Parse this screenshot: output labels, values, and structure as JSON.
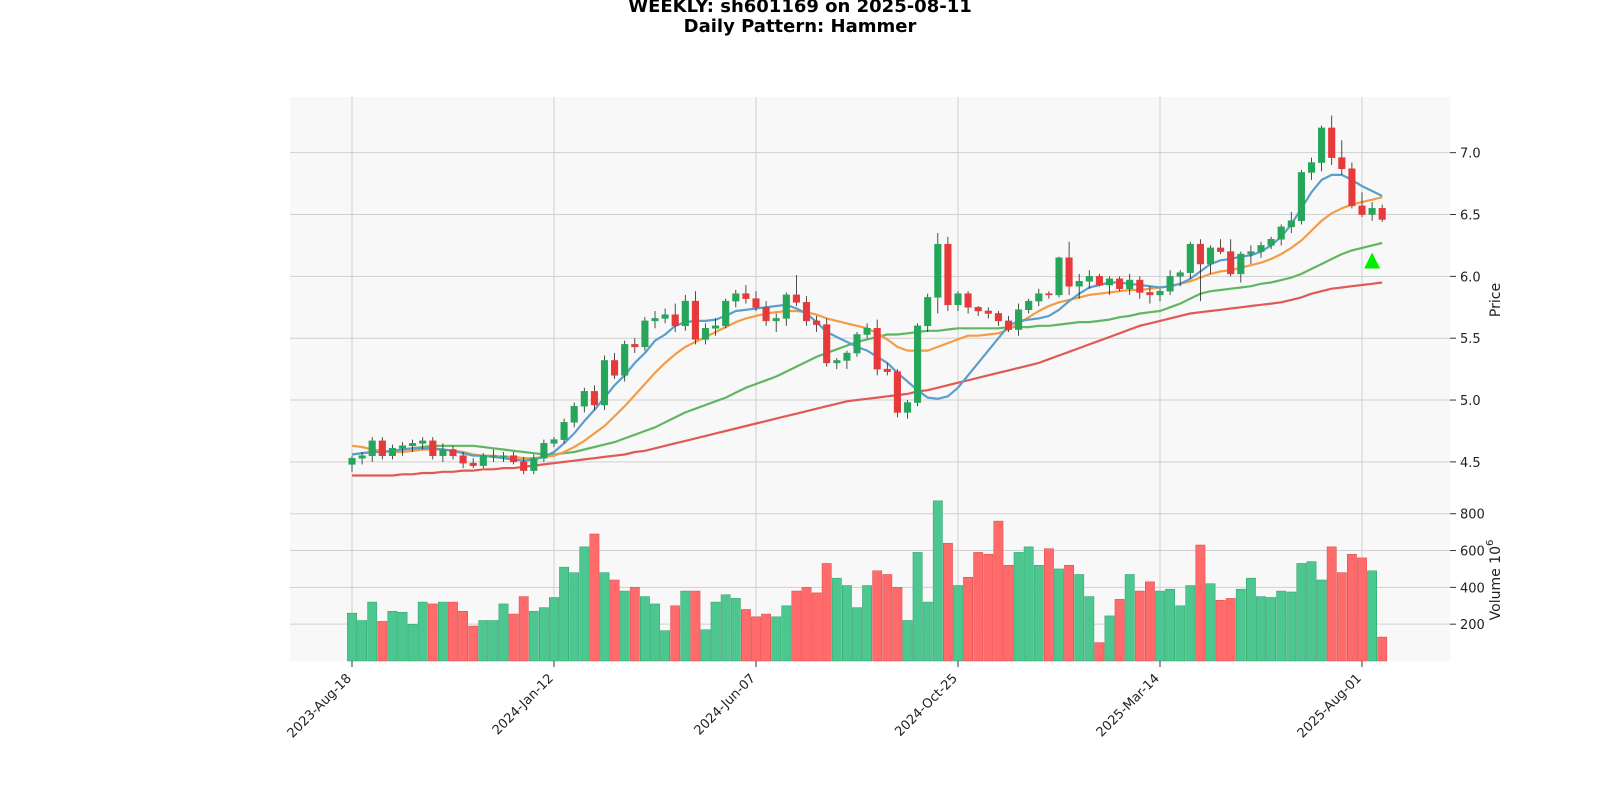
{
  "chart_data": {
    "type": "candlestick",
    "title": "WEEKLY: sh601169 on 2025-08-11",
    "subtitle": "Daily Pattern: Hammer",
    "ylabel_price": "Price",
    "ylabel_volume": "Volume",
    "volume_unit_exponent": "6",
    "x_tick_labels": [
      "2023-Aug-18",
      "2024-Jan-12",
      "2024-Jun-07",
      "2024-Oct-25",
      "2025-Mar-14",
      "2025-Aug-01"
    ],
    "x_tick_indices": [
      0,
      20,
      40,
      60,
      80,
      100
    ],
    "price_ylim": [
      4.2,
      7.45
    ],
    "price_ticks": [
      "4.5",
      "5.0",
      "5.5",
      "6.0",
      "6.5",
      "7.0"
    ],
    "volume_ylim": [
      0,
      880
    ],
    "volume_ticks": [
      "200",
      "400",
      "600",
      "800"
    ],
    "grid": true,
    "colors": {
      "up": "#26a65b",
      "down": "#e8393a",
      "volume_up": "#4dc790",
      "volume_down": "#ff6b6b",
      "ma_fast": "#5a9ec9",
      "ma_mid": "#f39c45",
      "ma_slow": "#5fb764",
      "ma_long": "#e05a55",
      "marker": "#00ee00",
      "panel_bg": "#f8f8f8"
    },
    "candles": [
      [
        4.48,
        4.55,
        4.42,
        4.53
      ],
      [
        4.53,
        4.58,
        4.48,
        4.55
      ],
      [
        4.55,
        4.7,
        4.5,
        4.67
      ],
      [
        4.67,
        4.7,
        4.52,
        4.55
      ],
      [
        4.55,
        4.64,
        4.52,
        4.61
      ],
      [
        4.61,
        4.66,
        4.55,
        4.63
      ],
      [
        4.63,
        4.68,
        4.58,
        4.65
      ],
      [
        4.65,
        4.7,
        4.6,
        4.67
      ],
      [
        4.67,
        4.7,
        4.52,
        4.55
      ],
      [
        4.55,
        4.65,
        4.5,
        4.6
      ],
      [
        4.6,
        4.63,
        4.52,
        4.55
      ],
      [
        4.55,
        4.58,
        4.45,
        4.49
      ],
      [
        4.49,
        4.53,
        4.45,
        4.47
      ],
      [
        4.47,
        4.57,
        4.45,
        4.55
      ],
      [
        4.55,
        4.6,
        4.5,
        4.55
      ],
      [
        4.55,
        4.58,
        4.5,
        4.55
      ],
      [
        4.55,
        4.58,
        4.48,
        4.5
      ],
      [
        4.5,
        4.54,
        4.4,
        4.43
      ],
      [
        4.43,
        4.56,
        4.4,
        4.53
      ],
      [
        4.53,
        4.68,
        4.5,
        4.65
      ],
      [
        4.65,
        4.7,
        4.62,
        4.68
      ],
      [
        4.68,
        4.85,
        4.65,
        4.82
      ],
      [
        4.82,
        4.98,
        4.78,
        4.95
      ],
      [
        4.95,
        5.1,
        4.9,
        5.07
      ],
      [
        5.07,
        5.12,
        4.92,
        4.96
      ],
      [
        4.96,
        5.36,
        4.92,
        5.32
      ],
      [
        5.32,
        5.38,
        5.17,
        5.2
      ],
      [
        5.2,
        5.48,
        5.15,
        5.45
      ],
      [
        5.45,
        5.5,
        5.38,
        5.43
      ],
      [
        5.43,
        5.67,
        5.4,
        5.64
      ],
      [
        5.64,
        5.72,
        5.58,
        5.66
      ],
      [
        5.66,
        5.74,
        5.62,
        5.69
      ],
      [
        5.69,
        5.78,
        5.55,
        5.6
      ],
      [
        5.6,
        5.85,
        5.56,
        5.8
      ],
      [
        5.8,
        5.88,
        5.45,
        5.49
      ],
      [
        5.49,
        5.62,
        5.45,
        5.58
      ],
      [
        5.58,
        5.66,
        5.52,
        5.6
      ],
      [
        5.6,
        5.82,
        5.58,
        5.8
      ],
      [
        5.8,
        5.89,
        5.75,
        5.86
      ],
      [
        5.86,
        5.93,
        5.78,
        5.82
      ],
      [
        5.82,
        5.88,
        5.72,
        5.75
      ],
      [
        5.75,
        5.8,
        5.6,
        5.64
      ],
      [
        5.64,
        5.7,
        5.55,
        5.66
      ],
      [
        5.66,
        5.87,
        5.6,
        5.85
      ],
      [
        5.85,
        6.01,
        5.76,
        5.79
      ],
      [
        5.79,
        5.84,
        5.6,
        5.64
      ],
      [
        5.64,
        5.68,
        5.55,
        5.61
      ],
      [
        5.61,
        5.66,
        5.27,
        5.3
      ],
      [
        5.3,
        5.34,
        5.25,
        5.32
      ],
      [
        5.32,
        5.4,
        5.25,
        5.38
      ],
      [
        5.38,
        5.55,
        5.35,
        5.53
      ],
      [
        5.53,
        5.62,
        5.5,
        5.58
      ],
      [
        5.58,
        5.65,
        5.2,
        5.25
      ],
      [
        5.25,
        5.3,
        5.2,
        5.23
      ],
      [
        5.23,
        5.25,
        4.86,
        4.9
      ],
      [
        4.9,
        5.0,
        4.85,
        4.98
      ],
      [
        4.98,
        5.62,
        4.95,
        5.6
      ],
      [
        5.6,
        5.86,
        5.55,
        5.83
      ],
      [
        5.83,
        6.35,
        5.7,
        6.26
      ],
      [
        6.26,
        6.32,
        5.72,
        5.77
      ],
      [
        5.77,
        5.88,
        5.72,
        5.86
      ],
      [
        5.86,
        5.88,
        5.7,
        5.75
      ],
      [
        5.75,
        5.76,
        5.68,
        5.72
      ],
      [
        5.72,
        5.75,
        5.66,
        5.7
      ],
      [
        5.7,
        5.72,
        5.6,
        5.64
      ],
      [
        5.64,
        5.68,
        5.55,
        5.57
      ],
      [
        5.57,
        5.78,
        5.52,
        5.73
      ],
      [
        5.73,
        5.82,
        5.7,
        5.8
      ],
      [
        5.8,
        5.9,
        5.76,
        5.86
      ],
      [
        5.86,
        5.88,
        5.82,
        5.85
      ],
      [
        5.85,
        6.16,
        5.83,
        6.15
      ],
      [
        6.15,
        6.28,
        5.85,
        5.92
      ],
      [
        5.92,
        6.02,
        5.82,
        5.96
      ],
      [
        5.96,
        6.05,
        5.9,
        6.0
      ],
      [
        6.0,
        6.02,
        5.92,
        5.93
      ],
      [
        5.93,
        6.0,
        5.85,
        5.98
      ],
      [
        5.98,
        6.0,
        5.88,
        5.9
      ],
      [
        5.9,
        6.02,
        5.85,
        5.97
      ],
      [
        5.97,
        6.0,
        5.82,
        5.87
      ],
      [
        5.87,
        5.92,
        5.78,
        5.85
      ],
      [
        5.85,
        5.9,
        5.8,
        5.88
      ],
      [
        5.88,
        6.05,
        5.85,
        6.0
      ],
      [
        6.0,
        6.05,
        5.92,
        6.03
      ],
      [
        6.03,
        6.28,
        5.98,
        6.26
      ],
      [
        6.26,
        6.3,
        5.8,
        6.1
      ],
      [
        6.1,
        6.25,
        6.02,
        6.23
      ],
      [
        6.23,
        6.3,
        6.18,
        6.2
      ],
      [
        6.2,
        6.3,
        6.0,
        6.02
      ],
      [
        6.02,
        6.2,
        5.95,
        6.18
      ],
      [
        6.18,
        6.25,
        6.1,
        6.2
      ],
      [
        6.2,
        6.28,
        6.15,
        6.25
      ],
      [
        6.25,
        6.32,
        6.22,
        6.3
      ],
      [
        6.3,
        6.42,
        6.25,
        6.4
      ],
      [
        6.4,
        6.52,
        6.35,
        6.45
      ],
      [
        6.45,
        6.86,
        6.42,
        6.84
      ],
      [
        6.84,
        6.96,
        6.78,
        6.92
      ],
      [
        6.92,
        7.22,
        6.85,
        7.2
      ],
      [
        7.2,
        7.3,
        6.9,
        6.96
      ],
      [
        6.96,
        7.1,
        6.82,
        6.87
      ],
      [
        6.87,
        6.92,
        6.55,
        6.57
      ],
      [
        6.57,
        6.68,
        6.48,
        6.5
      ],
      [
        6.5,
        6.6,
        6.45,
        6.55
      ],
      [
        6.55,
        6.58,
        6.44,
        6.46
      ]
    ],
    "volumes": [
      260,
      220,
      320,
      215,
      270,
      265,
      200,
      320,
      310,
      320,
      320,
      270,
      190,
      220,
      220,
      310,
      255,
      350,
      270,
      290,
      345,
      510,
      480,
      620,
      690,
      480,
      440,
      380,
      400,
      350,
      310,
      165,
      300,
      380,
      380,
      170,
      320,
      360,
      340,
      280,
      240,
      255,
      240,
      300,
      380,
      400,
      370,
      530,
      450,
      410,
      290,
      410,
      490,
      470,
      400,
      220,
      590,
      320,
      870,
      640,
      410,
      455,
      590,
      580,
      760,
      520,
      590,
      620,
      520,
      610,
      500,
      520,
      470,
      350,
      100,
      245,
      335,
      470,
      380,
      430,
      380,
      390,
      300,
      410,
      630,
      420,
      330,
      340,
      390,
      450,
      350,
      345,
      380,
      375,
      530,
      540,
      440,
      620,
      480,
      580,
      560,
      490,
      130
    ],
    "ma_fast": [
      4.56,
      4.57,
      4.58,
      4.58,
      4.59,
      4.6,
      4.61,
      4.61,
      4.61,
      4.6,
      4.59,
      4.57,
      4.55,
      4.55,
      4.54,
      4.53,
      4.52,
      4.51,
      4.52,
      4.54,
      4.58,
      4.65,
      4.73,
      4.83,
      4.92,
      5.02,
      5.12,
      5.2,
      5.3,
      5.38,
      5.48,
      5.53,
      5.6,
      5.63,
      5.64,
      5.64,
      5.65,
      5.68,
      5.72,
      5.73,
      5.74,
      5.75,
      5.76,
      5.77,
      5.74,
      5.7,
      5.63,
      5.55,
      5.51,
      5.47,
      5.43,
      5.4,
      5.35,
      5.3,
      5.22,
      5.15,
      5.08,
      5.02,
      5.01,
      5.03,
      5.1,
      5.2,
      5.3,
      5.4,
      5.5,
      5.6,
      5.64,
      5.65,
      5.66,
      5.68,
      5.73,
      5.8,
      5.86,
      5.91,
      5.93,
      5.95,
      5.95,
      5.94,
      5.93,
      5.92,
      5.91,
      5.92,
      5.94,
      5.98,
      6.04,
      6.1,
      6.13,
      6.14,
      6.16,
      6.17,
      6.2,
      6.25,
      6.32,
      6.42,
      6.55,
      6.68,
      6.78,
      6.82,
      6.82,
      6.78,
      6.73,
      6.69,
      6.65
    ],
    "ma_mid": [
      4.63,
      4.62,
      4.6,
      4.59,
      4.58,
      4.58,
      4.59,
      4.6,
      4.6,
      4.6,
      4.59,
      4.58,
      4.56,
      4.55,
      4.55,
      4.54,
      4.54,
      4.53,
      4.53,
      4.54,
      4.55,
      4.58,
      4.62,
      4.67,
      4.73,
      4.79,
      4.87,
      4.95,
      5.04,
      5.13,
      5.22,
      5.3,
      5.37,
      5.43,
      5.47,
      5.51,
      5.55,
      5.59,
      5.63,
      5.66,
      5.68,
      5.7,
      5.71,
      5.72,
      5.72,
      5.71,
      5.69,
      5.66,
      5.64,
      5.62,
      5.6,
      5.58,
      5.54,
      5.49,
      5.43,
      5.4,
      5.4,
      5.4,
      5.43,
      5.46,
      5.49,
      5.52,
      5.52,
      5.53,
      5.54,
      5.57,
      5.62,
      5.67,
      5.72,
      5.76,
      5.79,
      5.81,
      5.83,
      5.85,
      5.86,
      5.87,
      5.88,
      5.89,
      5.89,
      5.9,
      5.91,
      5.92,
      5.94,
      5.96,
      5.99,
      6.02,
      6.04,
      6.05,
      6.07,
      6.09,
      6.11,
      6.14,
      6.18,
      6.23,
      6.29,
      6.37,
      6.45,
      6.51,
      6.55,
      6.58,
      6.6,
      6.62,
      6.64
    ],
    "ma_slow": [
      4.56,
      4.57,
      4.58,
      4.58,
      4.59,
      4.6,
      4.61,
      4.62,
      4.63,
      4.63,
      4.63,
      4.63,
      4.63,
      4.62,
      4.61,
      4.6,
      4.59,
      4.58,
      4.57,
      4.56,
      4.56,
      4.57,
      4.58,
      4.6,
      4.62,
      4.64,
      4.66,
      4.69,
      4.72,
      4.75,
      4.78,
      4.82,
      4.86,
      4.9,
      4.93,
      4.96,
      4.99,
      5.02,
      5.06,
      5.1,
      5.13,
      5.16,
      5.19,
      5.23,
      5.27,
      5.31,
      5.35,
      5.38,
      5.41,
      5.44,
      5.47,
      5.49,
      5.51,
      5.53,
      5.53,
      5.54,
      5.55,
      5.56,
      5.56,
      5.57,
      5.58,
      5.58,
      5.58,
      5.58,
      5.58,
      5.59,
      5.59,
      5.59,
      5.6,
      5.6,
      5.61,
      5.62,
      5.63,
      5.63,
      5.64,
      5.65,
      5.67,
      5.68,
      5.7,
      5.71,
      5.72,
      5.75,
      5.78,
      5.82,
      5.86,
      5.88,
      5.89,
      5.9,
      5.91,
      5.92,
      5.94,
      5.95,
      5.97,
      5.99,
      6.02,
      6.06,
      6.1,
      6.14,
      6.18,
      6.21,
      6.23,
      6.25,
      6.27
    ],
    "ma_long": [
      4.39,
      4.39,
      4.39,
      4.39,
      4.39,
      4.4,
      4.4,
      4.41,
      4.41,
      4.42,
      4.42,
      4.43,
      4.43,
      4.44,
      4.44,
      4.45,
      4.45,
      4.46,
      4.47,
      4.48,
      4.49,
      4.5,
      4.51,
      4.52,
      4.53,
      4.54,
      4.55,
      4.56,
      4.58,
      4.59,
      4.61,
      4.63,
      4.65,
      4.67,
      4.69,
      4.71,
      4.73,
      4.75,
      4.77,
      4.79,
      4.81,
      4.83,
      4.85,
      4.87,
      4.89,
      4.91,
      4.93,
      4.95,
      4.97,
      4.99,
      5.0,
      5.01,
      5.02,
      5.03,
      5.04,
      5.05,
      5.07,
      5.08,
      5.1,
      5.12,
      5.14,
      5.16,
      5.18,
      5.2,
      5.22,
      5.24,
      5.26,
      5.28,
      5.3,
      5.33,
      5.36,
      5.39,
      5.42,
      5.45,
      5.48,
      5.51,
      5.54,
      5.57,
      5.6,
      5.62,
      5.64,
      5.66,
      5.68,
      5.7,
      5.71,
      5.72,
      5.73,
      5.74,
      5.75,
      5.76,
      5.77,
      5.78,
      5.79,
      5.81,
      5.83,
      5.86,
      5.88,
      5.9,
      5.91,
      5.92,
      5.93,
      5.94,
      5.95
    ],
    "marker": {
      "type": "triangle-up",
      "index": 101,
      "price": 6.12
    }
  }
}
